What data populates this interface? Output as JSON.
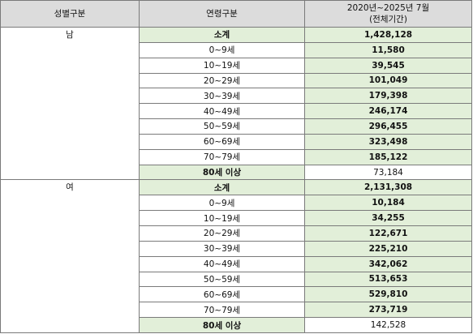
{
  "headers": {
    "gender": "성별구분",
    "age": "연령구분",
    "period_line1": "2020년~2025년 7월",
    "period_line2": "(전체기간)"
  },
  "male": {
    "label": "남",
    "rows": [
      {
        "age": "소계",
        "value": "1,428,128"
      },
      {
        "age": "0~9세",
        "value": "11,580"
      },
      {
        "age": "10~19세",
        "value": "39,545"
      },
      {
        "age": "20~29세",
        "value": "101,049"
      },
      {
        "age": "30~39세",
        "value": "179,398"
      },
      {
        "age": "40~49세",
        "value": "246,174"
      },
      {
        "age": "50~59세",
        "value": "296,455"
      },
      {
        "age": "60~69세",
        "value": "323,498"
      },
      {
        "age": "70~79세",
        "value": "185,122"
      },
      {
        "age": "80세 이상",
        "value": "73,184"
      }
    ]
  },
  "female": {
    "label": "여",
    "rows": [
      {
        "age": "소계",
        "value": "2,131,308"
      },
      {
        "age": "0~9세",
        "value": "10,184"
      },
      {
        "age": "10~19세",
        "value": "34,255"
      },
      {
        "age": "20~29세",
        "value": "122,671"
      },
      {
        "age": "30~39세",
        "value": "225,210"
      },
      {
        "age": "40~49세",
        "value": "342,062"
      },
      {
        "age": "50~59세",
        "value": "513,653"
      },
      {
        "age": "60~69세",
        "value": "529,810"
      },
      {
        "age": "70~79세",
        "value": "273,719"
      },
      {
        "age": "80세 이상",
        "value": "142,528"
      }
    ]
  }
}
